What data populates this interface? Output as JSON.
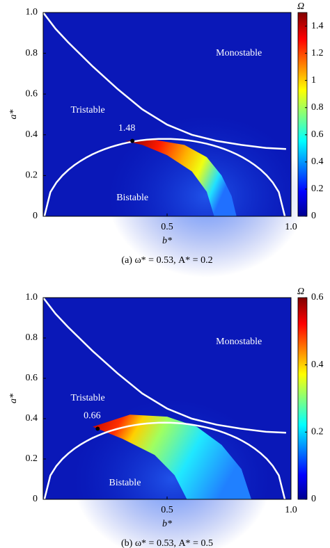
{
  "chart_data": [
    {
      "type": "heatmap",
      "caption": "(a) ω* = 0.53, A* = 0.2",
      "x_label": "b*",
      "y_label": "a*",
      "xlim": [
        0,
        1
      ],
      "ylim": [
        0,
        1
      ],
      "xticks": [
        0.5,
        {
          "value": 1,
          "label": "1.0"
        }
      ],
      "yticks": [
        0,
        0.2,
        0.4,
        0.6,
        0.8,
        {
          "value": 1,
          "label": "1.0"
        }
      ],
      "colorbar_label": "Ω",
      "colormap": "jet",
      "clim": [
        0,
        1.5
      ],
      "cticks": [
        0,
        0.2,
        0.4,
        0.6,
        0.8,
        1,
        {
          "value": 1.2,
          "label": "1.2"
        },
        {
          "value": 1.4,
          "label": "1.4"
        }
      ],
      "regions": [
        "Monostable",
        "Tristable",
        "Bistable"
      ],
      "peak": {
        "x": 0.36,
        "y": 0.37,
        "value": 1.48
      }
    },
    {
      "type": "heatmap",
      "caption": "(b) ω* = 0.53, A* = 0.5",
      "x_label": "b*",
      "y_label": "a*",
      "xlim": [
        0,
        1
      ],
      "ylim": [
        0,
        1
      ],
      "xticks": [
        0.5,
        {
          "value": 1,
          "label": "1.0"
        }
      ],
      "yticks": [
        0,
        0.2,
        0.4,
        0.6,
        0.8,
        {
          "value": 1,
          "label": "1.0"
        }
      ],
      "colorbar_label": "Ω",
      "colormap": "jet",
      "clim": [
        0,
        0.6
      ],
      "cticks": [
        0,
        0.2,
        0.4,
        0.6
      ],
      "regions": [
        "Monostable",
        "Tristable",
        "Bistable"
      ],
      "peak": {
        "x": 0.22,
        "y": 0.35,
        "value": 0.66
      }
    }
  ]
}
